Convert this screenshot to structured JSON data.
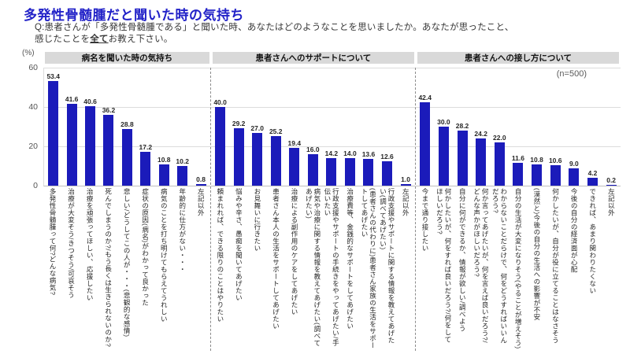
{
  "title": "多発性骨髄腫だと聞いた時の気持ち",
  "question": {
    "line1": "Q:患者さんが「多発性骨髄腫である」と聞いた時、あなたはどのようなことを思いましたか。あなたが思ったこと、",
    "line2_pre": "感じたことを",
    "line2_emph": "全て",
    "line2_post": "お教え下さい。"
  },
  "chart_data": {
    "type": "bar",
    "title": "多発性骨髄腫だと聞いた時の気持ち",
    "y_unit": "(%)",
    "ylabel": "",
    "xlabel": "",
    "ylim": [
      0,
      60
    ],
    "yticks": [
      60,
      40,
      20,
      0
    ],
    "grid": true,
    "n_label": "(n=500)",
    "bar_color": "#1b1bba",
    "sections": [
      {
        "header": "病名を聞いた時の気持ち",
        "categories": [
          "多発性骨髄腫って何?どんな病気?",
          "治療が大変そう/きつそう/可哀そう",
          "治療を頑張ってほしい、応援したい",
          "死んでしまうのか?/もう長くは生きられないのか?",
          "悲しい/どうしてこの人が・・・(悲観的な感情)",
          "症状の原因(病名)がわかって良かった",
          "病気のことを打ち明けてもらえてうれしい",
          "年齢的に仕方がない・・・",
          "左記以外"
        ],
        "values": [
          53.4,
          41.6,
          40.6,
          36.2,
          28.8,
          17.2,
          10.8,
          10.2,
          0.8
        ]
      },
      {
        "header": "患者さんへのサポートについて",
        "categories": [
          "頼まれれば、できる限りのことはやりたい",
          "悩みや辛さ、愚痴を聞いてあげたい",
          "お見舞いに行きたい",
          "患者さん本人の生活をサポートしてあげたい",
          "治療による副作用のケアをしてあげたい",
          "病気や治療に関する情報を教えてあげたい(調べてあげたい)",
          "行政支援やサポートの手続きをやってあげたい/手伝いたい",
          "治療費等、金銭的なサポートをしてあげたい",
          "(患者さんの代わりに)患者さん家族の生活をサポートしてあげたい",
          "行政支援やサポートに関する情報を教えてあげたい(調べてあげたい)",
          "左記以外"
        ],
        "values": [
          40.0,
          29.2,
          27.0,
          25.2,
          19.4,
          16.0,
          14.2,
          14.0,
          13.6,
          12.6,
          1.0
        ]
      },
      {
        "header": "患者さんへの接し方について",
        "categories": [
          "今まで通り接したい",
          "何かしたいが、何をすれば良いだろう?/何をしてほしいだろう?",
          "自分に何ができるか、情報が欲しい/調べよう",
          "何か言ってあげたいが、何を言えば良いだろう?/どんな声かがほしいだろう?",
          "わからないことだらけで、何をどうすればいいんだろう?",
          "自分の生活が大変になりそう(やることが増えそう)",
          "(漠然と)今後の自分の生活への影響が不安",
          "何かしたいが、自分が役に立てることはなさそう",
          "今後の自分の経済面が心配",
          "できれば、あまり関わりたくない",
          "左記以外"
        ],
        "values": [
          42.4,
          30.0,
          28.2,
          24.2,
          22.0,
          11.6,
          10.8,
          10.6,
          9.0,
          4.2,
          0.2
        ]
      }
    ]
  }
}
